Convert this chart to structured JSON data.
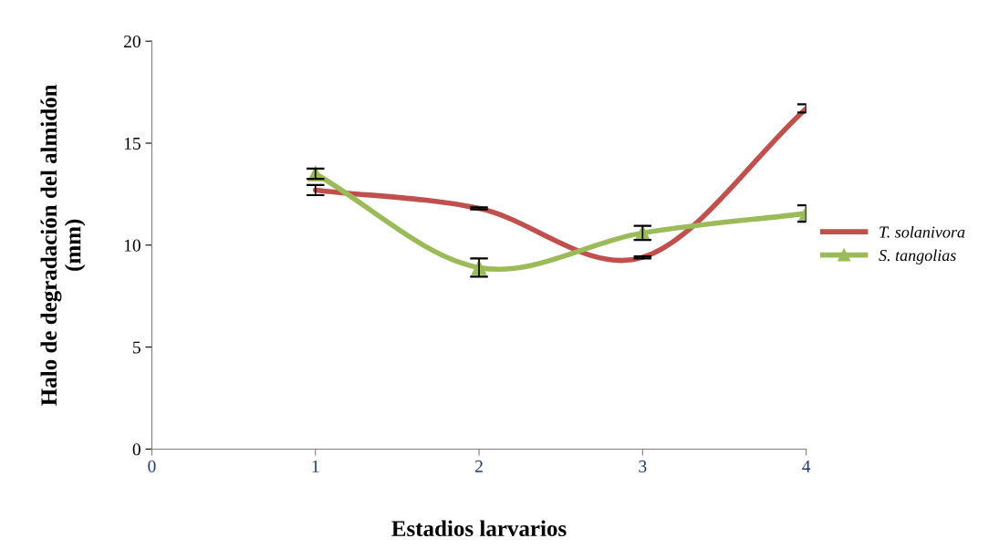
{
  "chart_data": {
    "type": "line",
    "xlabel": "Estadios larvarios",
    "ylabel": "Halo de degradación del almidón\n(mm)",
    "x": [
      1,
      2,
      3,
      4
    ],
    "series": [
      {
        "name": "T. solanivora",
        "color": "#c0504d",
        "marker": "none",
        "values": [
          12.7,
          11.8,
          9.4,
          16.7
        ],
        "errors": [
          0.25,
          0.05,
          0.05,
          0.2
        ]
      },
      {
        "name": "S. tangolias",
        "color": "#9bbb59",
        "marker": "triangle",
        "values": [
          13.5,
          8.9,
          10.6,
          11.55
        ],
        "errors": [
          0.25,
          0.45,
          0.35,
          0.4
        ]
      }
    ],
    "xlim": [
      0,
      4
    ],
    "xticks": [
      0,
      1,
      2,
      3,
      4
    ],
    "ylim": [
      0,
      20
    ],
    "yticks": [
      0,
      5,
      10,
      15,
      20
    ],
    "grid": false,
    "legend": "right"
  }
}
